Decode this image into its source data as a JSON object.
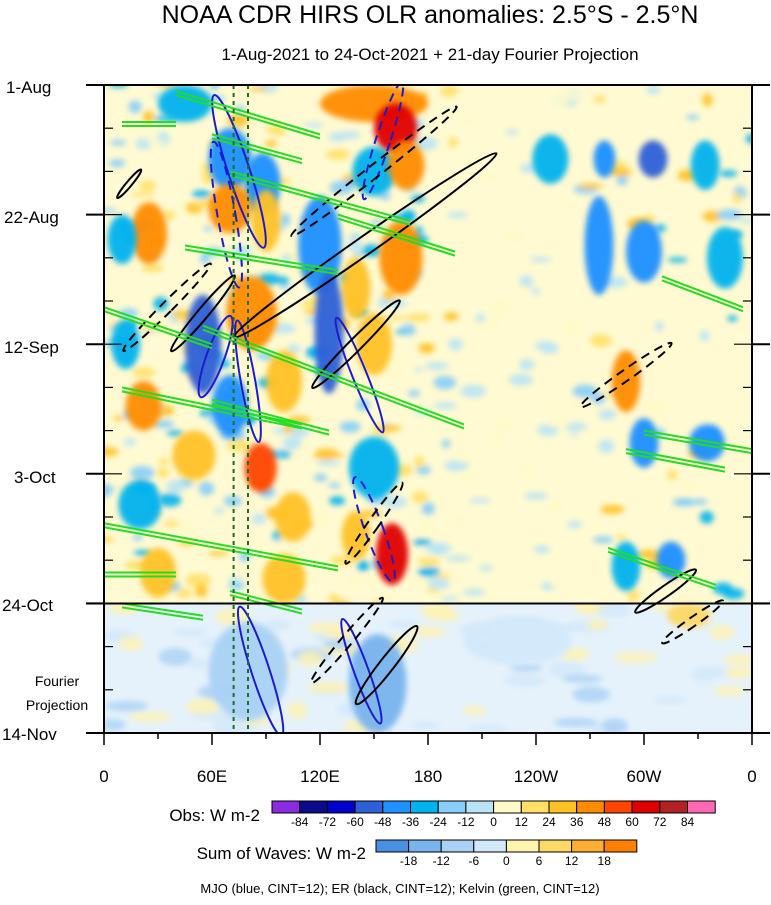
{
  "chart_data": {
    "type": "heatmap",
    "title": "NOAA CDR HIRS OLR anomalies: 2.5°S - 2.5°N",
    "subtitle": "1-Aug-2021 to 24-Oct-2021 + 21-day Fourier Projection",
    "y_axis": {
      "ticks": [
        {
          "label": "1-Aug",
          "day": 0
        },
        {
          "label": "22-Aug",
          "day": 21
        },
        {
          "label": "12-Sep",
          "day": 42
        },
        {
          "label": "3-Oct",
          "day": 63
        },
        {
          "label": "24-Oct",
          "day": 84
        },
        {
          "label": "14-Nov",
          "day": 105
        }
      ],
      "range_days": [
        0,
        105
      ],
      "projection_start_day": 84,
      "projection_label": [
        "Fourier",
        "Projection"
      ]
    },
    "x_axis": {
      "ticks": [
        {
          "label": "0",
          "lon": 0
        },
        {
          "label": "60E",
          "lon": 60
        },
        {
          "label": "120E",
          "lon": 120
        },
        {
          "label": "180",
          "lon": 180
        },
        {
          "label": "120W",
          "lon": 240
        },
        {
          "label": "60W",
          "lon": 300
        },
        {
          "label": "0",
          "lon": 360
        }
      ],
      "range_lon": [
        0,
        360
      ],
      "dashed_reference_lons": [
        72,
        80
      ]
    },
    "obs_colorbar": {
      "label": "Obs: W m-2",
      "levels": [
        "-84",
        "-72",
        "-60",
        "-48",
        "-36",
        "-24",
        "-12",
        "0",
        "12",
        "24",
        "36",
        "48",
        "60",
        "72",
        "84"
      ],
      "colors": [
        "#8a2be2",
        "#0a0a8a",
        "#0000cd",
        "#2f5fd7",
        "#1e90ff",
        "#00b2ee",
        "#87cefa",
        "#b9e4f5",
        "#fffbc8",
        "#ffe066",
        "#ffc125",
        "#ff8c00",
        "#ff4500",
        "#e00000",
        "#b22222",
        "#ff69b4"
      ]
    },
    "waves_colorbar": {
      "label": "Sum of Waves: W m-2",
      "levels": [
        "-18",
        "-12",
        "-6",
        "0",
        "6",
        "12",
        "18"
      ],
      "colors": [
        "#4a90e2",
        "#79b4ee",
        "#a9d1f5",
        "#d3e9fa",
        "#fff3b0",
        "#ffd966",
        "#ffad33",
        "#ff7f00"
      ]
    },
    "footnote": "MJO (blue, CINT=12); ER (black, CINT=12); Kelvin (green, CINT=12)",
    "wave_contours": [
      {
        "name": "MJO",
        "color": "#1c1ccf"
      },
      {
        "name": "ER",
        "color": "#000000"
      },
      {
        "name": "Kelvin",
        "color": "#22dd22"
      }
    ],
    "anomaly_patches": [
      {
        "lon": 150,
        "day": 3,
        "rlon": 30,
        "rday": 3,
        "v": 40
      },
      {
        "lon": 162,
        "day": 7,
        "rlon": 12,
        "rday": 4,
        "v": 60
      },
      {
        "lon": 45,
        "day": 3,
        "rlon": 15,
        "rday": 3,
        "v": -30
      },
      {
        "lon": 70,
        "day": 12,
        "rlon": 12,
        "rday": 5,
        "v": -45
      },
      {
        "lon": 88,
        "day": 16,
        "rlon": 10,
        "rday": 5,
        "v": -40
      },
      {
        "lon": 150,
        "day": 14,
        "rlon": 12,
        "rday": 4,
        "v": -30
      },
      {
        "lon": 168,
        "day": 13,
        "rlon": 10,
        "rday": 4,
        "v": 40
      },
      {
        "lon": 248,
        "day": 12,
        "rlon": 10,
        "rday": 4,
        "v": -35
      },
      {
        "lon": 278,
        "day": 12,
        "rlon": 6,
        "rday": 3,
        "v": -40
      },
      {
        "lon": 305,
        "day": 12,
        "rlon": 8,
        "rday": 3,
        "v": -50
      },
      {
        "lon": 334,
        "day": 13,
        "rlon": 8,
        "rday": 4,
        "v": -35
      },
      {
        "lon": 25,
        "day": 24,
        "rlon": 10,
        "rday": 5,
        "v": 40
      },
      {
        "lon": 70,
        "day": 20,
        "rlon": 12,
        "rday": 4,
        "v": 45
      },
      {
        "lon": 90,
        "day": 22,
        "rlon": 8,
        "rday": 5,
        "v": 30
      },
      {
        "lon": 10,
        "day": 25,
        "rlon": 8,
        "rday": 4,
        "v": -30
      },
      {
        "lon": 120,
        "day": 26,
        "rlon": 12,
        "rday": 8,
        "v": -40
      },
      {
        "lon": 165,
        "day": 28,
        "rlon": 12,
        "rday": 6,
        "v": 45
      },
      {
        "lon": 140,
        "day": 33,
        "rlon": 8,
        "rday": 5,
        "v": 30
      },
      {
        "lon": 275,
        "day": 26,
        "rlon": 8,
        "rday": 8,
        "v": -40
      },
      {
        "lon": 300,
        "day": 27,
        "rlon": 10,
        "rday": 5,
        "v": -45
      },
      {
        "lon": 345,
        "day": 28,
        "rlon": 10,
        "rday": 5,
        "v": -30
      },
      {
        "lon": 82,
        "day": 37,
        "rlon": 14,
        "rday": 6,
        "v": 45
      },
      {
        "lon": 55,
        "day": 42,
        "rlon": 10,
        "rday": 8,
        "v": -55
      },
      {
        "lon": 125,
        "day": 40,
        "rlon": 8,
        "rday": 10,
        "v": -50
      },
      {
        "lon": 150,
        "day": 42,
        "rlon": 10,
        "rday": 5,
        "v": 35
      },
      {
        "lon": 12,
        "day": 42,
        "rlon": 8,
        "rday": 4,
        "v": -35
      },
      {
        "lon": 22,
        "day": 52,
        "rlon": 10,
        "rday": 4,
        "v": 40
      },
      {
        "lon": 70,
        "day": 52,
        "rlon": 10,
        "rday": 5,
        "v": -40
      },
      {
        "lon": 100,
        "day": 48,
        "rlon": 10,
        "rday": 5,
        "v": 35
      },
      {
        "lon": 290,
        "day": 48,
        "rlon": 8,
        "rday": 5,
        "v": 40
      },
      {
        "lon": 300,
        "day": 58,
        "rlon": 8,
        "rday": 4,
        "v": -40
      },
      {
        "lon": 335,
        "day": 58,
        "rlon": 10,
        "rday": 3,
        "v": -45
      },
      {
        "lon": 87,
        "day": 62,
        "rlon": 9,
        "rday": 4,
        "v": 55
      },
      {
        "lon": 150,
        "day": 62,
        "rlon": 14,
        "rday": 5,
        "v": -25
      },
      {
        "lon": 50,
        "day": 60,
        "rlon": 12,
        "rday": 4,
        "v": 30
      },
      {
        "lon": 20,
        "day": 68,
        "rlon": 12,
        "rday": 4,
        "v": -35
      },
      {
        "lon": 105,
        "day": 70,
        "rlon": 10,
        "rday": 4,
        "v": 35
      },
      {
        "lon": 160,
        "day": 76,
        "rlon": 9,
        "rday": 5,
        "v": 65
      },
      {
        "lon": 140,
        "day": 73,
        "rlon": 8,
        "rday": 4,
        "v": 35
      },
      {
        "lon": 30,
        "day": 79,
        "rlon": 10,
        "rday": 4,
        "v": 35
      },
      {
        "lon": 100,
        "day": 80,
        "rlon": 12,
        "rday": 4,
        "v": 30
      },
      {
        "lon": 290,
        "day": 78,
        "rlon": 8,
        "rday": 4,
        "v": -35
      },
      {
        "lon": 315,
        "day": 77,
        "rlon": 8,
        "rday": 3,
        "v": -40
      },
      {
        "lon": 80,
        "day": 95,
        "rlon": 22,
        "rday": 8,
        "v": -12
      },
      {
        "lon": 152,
        "day": 97,
        "rlon": 16,
        "rday": 8,
        "v": -15
      },
      {
        "lon": 325,
        "day": 86,
        "rlon": 12,
        "rday": 2,
        "v": 8
      },
      {
        "lon": 230,
        "day": 90,
        "rlon": 30,
        "rday": 4,
        "v": -5
      }
    ]
  }
}
